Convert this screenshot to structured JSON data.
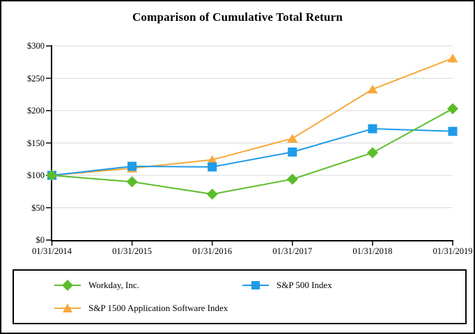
{
  "chart_data": {
    "type": "line",
    "title": "Comparison of Cumulative Total Return",
    "categories": [
      "01/31/2014",
      "01/31/2015",
      "01/31/2016",
      "01/31/2017",
      "01/31/2018",
      "01/31/2019"
    ],
    "y_tick_values": [
      0,
      50,
      100,
      150,
      200,
      250,
      300
    ],
    "y_tick_labels": [
      "$0",
      "$50",
      "$100",
      "$150",
      "$200",
      "$250",
      "$300"
    ],
    "ylim": [
      0,
      300
    ],
    "grid": "horizontal",
    "legend_position": "bottom-box",
    "series": [
      {
        "name": "Workday, Inc.",
        "marker": "diamond",
        "color": "#5BBD2B",
        "values": [
          100,
          90,
          71,
          94,
          135,
          203
        ]
      },
      {
        "name": "S&P 500 Index",
        "marker": "square",
        "color": "#1E9BE9",
        "values": [
          100,
          114,
          113,
          136,
          172,
          168
        ]
      },
      {
        "name": "S&P 1500 Application Software Index",
        "marker": "triangle",
        "color": "#F7A83B",
        "values": [
          100,
          111,
          124,
          157,
          233,
          281
        ]
      }
    ]
  },
  "colors": {
    "grid": "#D9D9D9",
    "axis": "#000000",
    "background": "#FFFFFF"
  }
}
